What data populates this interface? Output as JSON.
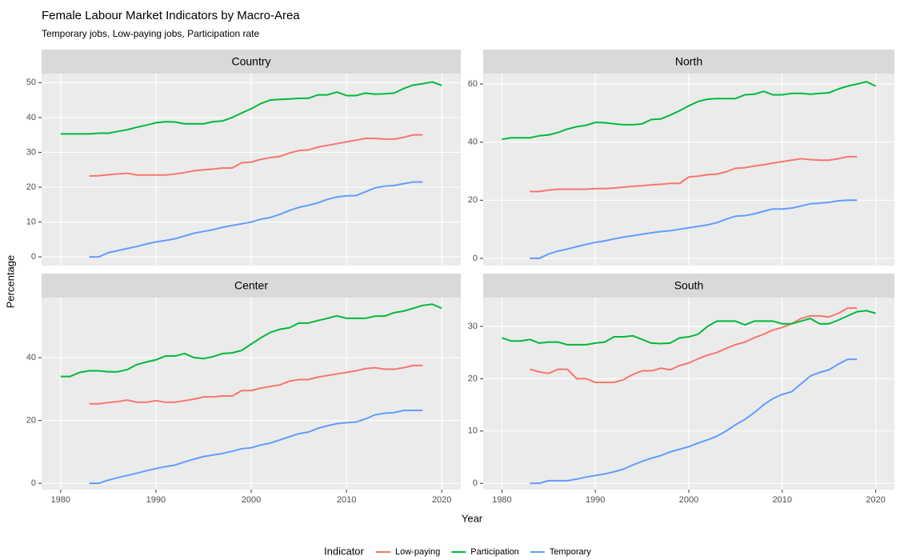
{
  "title": "Female Labour Market Indicators by Macro-Area",
  "subtitle": "Temporary jobs, Low-paying jobs, Participation rate",
  "x_label": "Year",
  "y_label": "Percentage",
  "legend_title": "Indicator",
  "chart_data": [
    {
      "type": "line",
      "title": "Country",
      "x": [
        1980,
        1981,
        1982,
        1983,
        1984,
        1985,
        1986,
        1987,
        1988,
        1989,
        1990,
        1991,
        1992,
        1993,
        1994,
        1995,
        1996,
        1997,
        1998,
        1999,
        2000,
        2001,
        2002,
        2003,
        2004,
        2005,
        2006,
        2007,
        2008,
        2009,
        2010,
        2011,
        2012,
        2013,
        2014,
        2015,
        2016,
        2017,
        2018,
        2019,
        2020
      ],
      "xlim": [
        1978,
        2022
      ],
      "xticks": [
        1980,
        1990,
        2000,
        2010,
        2020
      ],
      "ylim": [
        -2.5,
        52.6
      ],
      "yticks": [
        0,
        10,
        20,
        30,
        40,
        50
      ],
      "grid": true,
      "series": [
        {
          "name": "Low-paying",
          "color": "#F8766D",
          "values": [
            null,
            null,
            null,
            23.2,
            23.3,
            23.6,
            23.8,
            24,
            23.5,
            23.5,
            23.5,
            23.5,
            23.8,
            24.2,
            24.7,
            25,
            25.2,
            25.5,
            25.5,
            27,
            27.2,
            28,
            28.5,
            28.8,
            29.8,
            30.5,
            30.7,
            31.5,
            32,
            32.5,
            33,
            33.5,
            34,
            34,
            33.8,
            33.8,
            34.3,
            35,
            35,
            null,
            null
          ]
        },
        {
          "name": "Participation",
          "color": "#00BA38",
          "values": [
            35.3,
            35.3,
            35.3,
            35.3,
            35.5,
            35.5,
            36,
            36.5,
            37.2,
            37.8,
            38.5,
            38.8,
            38.7,
            38.2,
            38.2,
            38.2,
            38.8,
            39,
            40,
            41.3,
            42.5,
            44,
            45,
            45.2,
            45.3,
            45.5,
            45.5,
            46.5,
            46.5,
            47.3,
            46.3,
            46.3,
            47,
            46.7,
            46.8,
            47,
            48.3,
            49.3,
            49.7,
            50.2,
            49.2
          ]
        },
        {
          "name": "Temporary",
          "color": "#619CFF",
          "values": [
            null,
            null,
            null,
            0,
            0,
            1.2,
            1.8,
            2.4,
            3,
            3.7,
            4.3,
            4.7,
            5.2,
            6,
            6.8,
            7.3,
            7.8,
            8.5,
            9,
            9.5,
            10,
            10.8,
            11.3,
            12.2,
            13.3,
            14.2,
            14.8,
            15.5,
            16.5,
            17.2,
            17.5,
            17.6,
            18.7,
            19.8,
            20.3,
            20.5,
            21,
            21.5,
            21.5,
            null,
            null
          ]
        }
      ]
    },
    {
      "type": "line",
      "title": "North",
      "x": [
        1980,
        1981,
        1982,
        1983,
        1984,
        1985,
        1986,
        1987,
        1988,
        1989,
        1990,
        1991,
        1992,
        1993,
        1994,
        1995,
        1996,
        1997,
        1998,
        1999,
        2000,
        2001,
        2002,
        2003,
        2004,
        2005,
        2006,
        2007,
        2008,
        2009,
        2010,
        2011,
        2012,
        2013,
        2014,
        2015,
        2016,
        2017,
        2018,
        2019,
        2020
      ],
      "xlim": [
        1978,
        2022
      ],
      "xticks": [
        1980,
        1990,
        2000,
        2010,
        2020
      ],
      "ylim": [
        -2.5,
        63.6
      ],
      "yticks": [
        0,
        20,
        40,
        60
      ],
      "grid": true,
      "series": [
        {
          "name": "Low-paying",
          "color": "#F8766D",
          "values": [
            null,
            null,
            null,
            23,
            23,
            23.5,
            23.8,
            23.8,
            23.8,
            23.8,
            24,
            24,
            24.2,
            24.5,
            24.8,
            25,
            25.3,
            25.5,
            25.8,
            25.8,
            28,
            28.3,
            28.8,
            29,
            29.8,
            31,
            31.2,
            31.8,
            32.2,
            32.8,
            33.3,
            33.8,
            34.3,
            34,
            33.8,
            33.8,
            34.3,
            35,
            35,
            null,
            null
          ]
        },
        {
          "name": "Participation",
          "color": "#00BA38",
          "values": [
            41,
            41.5,
            41.5,
            41.5,
            42.2,
            42.5,
            43.3,
            44.5,
            45.3,
            45.8,
            46.8,
            46.7,
            46.3,
            46,
            46,
            46.3,
            47.8,
            48,
            49.3,
            50.8,
            52.5,
            54,
            54.8,
            55,
            55,
            55,
            56.3,
            56.5,
            57.5,
            56.3,
            56.3,
            56.8,
            56.8,
            56.5,
            56.8,
            57,
            58.3,
            59.3,
            60,
            60.8,
            59.3
          ]
        },
        {
          "name": "Temporary",
          "color": "#619CFF",
          "values": [
            null,
            null,
            null,
            0,
            0,
            1.5,
            2.5,
            3.2,
            4,
            4.8,
            5.5,
            6,
            6.7,
            7.3,
            7.8,
            8.3,
            8.8,
            9.2,
            9.5,
            10,
            10.5,
            11,
            11.5,
            12.3,
            13.5,
            14.5,
            14.7,
            15.3,
            16.2,
            17,
            17,
            17.3,
            18,
            18.8,
            19,
            19.3,
            19.8,
            20,
            20,
            null,
            null
          ]
        }
      ]
    },
    {
      "type": "line",
      "title": "Center",
      "x": [
        1980,
        1981,
        1982,
        1983,
        1984,
        1985,
        1986,
        1987,
        1988,
        1989,
        1990,
        1991,
        1992,
        1993,
        1994,
        1995,
        1996,
        1997,
        1998,
        1999,
        2000,
        2001,
        2002,
        2003,
        2004,
        2005,
        2006,
        2007,
        2008,
        2009,
        2010,
        2011,
        2012,
        2013,
        2014,
        2015,
        2016,
        2017,
        2018,
        2019,
        2020
      ],
      "xlim": [
        1978,
        2022
      ],
      "xticks": [
        1980,
        1990,
        2000,
        2010,
        2020
      ],
      "ylim": [
        -2,
        59.1
      ],
      "yticks": [
        0,
        20,
        40
      ],
      "grid": true,
      "series": [
        {
          "name": "Low-paying",
          "color": "#F8766D",
          "values": [
            null,
            null,
            null,
            25.3,
            25.3,
            25.7,
            26,
            26.5,
            25.8,
            25.8,
            26.3,
            25.8,
            25.8,
            26.3,
            26.8,
            27.5,
            27.5,
            27.8,
            27.8,
            29.5,
            29.5,
            30.3,
            30.8,
            31.3,
            32.5,
            33,
            33,
            33.8,
            34.3,
            34.8,
            35.3,
            35.8,
            36.5,
            36.8,
            36.3,
            36.3,
            36.8,
            37.5,
            37.5,
            null,
            null
          ]
        },
        {
          "name": "Participation",
          "color": "#00BA38",
          "values": [
            34,
            34,
            35.3,
            35.8,
            35.8,
            35.5,
            35.5,
            36.2,
            37.8,
            38.6,
            39.3,
            40.5,
            40.5,
            41.3,
            40,
            39.7,
            40.3,
            41.3,
            41.5,
            42.3,
            44.3,
            46.3,
            48,
            49,
            49.5,
            51,
            51,
            51.8,
            52.5,
            53.3,
            52.5,
            52.5,
            52.5,
            53.2,
            53.2,
            54.3,
            54.8,
            55.7,
            56.6,
            57,
            55.7
          ]
        },
        {
          "name": "Temporary",
          "color": "#619CFF",
          "values": [
            null,
            null,
            null,
            0,
            0,
            1,
            1.8,
            2.5,
            3.2,
            4,
            4.7,
            5.3,
            5.8,
            6.8,
            7.7,
            8.5,
            9,
            9.5,
            10.2,
            11,
            11.3,
            12.2,
            12.8,
            13.8,
            14.8,
            15.8,
            16.3,
            17.5,
            18.3,
            19,
            19.3,
            19.5,
            20.5,
            21.8,
            22.3,
            22.5,
            23.2,
            23.2,
            23.2,
            null,
            null
          ]
        }
      ]
    },
    {
      "type": "line",
      "title": "South",
      "x": [
        1980,
        1981,
        1982,
        1983,
        1984,
        1985,
        1986,
        1987,
        1988,
        1989,
        1990,
        1991,
        1992,
        1993,
        1994,
        1995,
        1996,
        1997,
        1998,
        1999,
        2000,
        2001,
        2002,
        2003,
        2004,
        2005,
        2006,
        2007,
        2008,
        2009,
        2010,
        2011,
        2012,
        2013,
        2014,
        2015,
        2016,
        2017,
        2018,
        2019,
        2020
      ],
      "xlim": [
        1978,
        2022
      ],
      "xticks": [
        1980,
        1990,
        2000,
        2010,
        2020
      ],
      "ylim": [
        -1.2,
        35.5
      ],
      "yticks": [
        0,
        10,
        20,
        30
      ],
      "grid": true,
      "series": [
        {
          "name": "Low-paying",
          "color": "#F8766D",
          "values": [
            null,
            null,
            null,
            21.8,
            21.3,
            21,
            21.8,
            21.8,
            20,
            20,
            19.3,
            19.3,
            19.3,
            19.8,
            20.8,
            21.5,
            21.5,
            22,
            21.7,
            22.5,
            23,
            23.8,
            24.5,
            25,
            25.8,
            26.5,
            27,
            27.8,
            28.5,
            29.3,
            29.8,
            30.5,
            31.5,
            32,
            32,
            31.8,
            32.5,
            33.5,
            33.5,
            null,
            null
          ]
        },
        {
          "name": "Participation",
          "color": "#00BA38",
          "values": [
            27.8,
            27.2,
            27.2,
            27.5,
            26.8,
            27,
            27,
            26.5,
            26.5,
            26.5,
            26.8,
            27,
            28,
            28,
            28.2,
            27.5,
            26.8,
            26.7,
            26.8,
            27.8,
            28,
            28.5,
            30,
            31,
            31,
            31,
            30.3,
            31,
            31,
            31,
            30.5,
            30.5,
            31,
            31.5,
            30.5,
            30.5,
            31.2,
            32,
            32.8,
            33,
            32.5
          ]
        },
        {
          "name": "Temporary",
          "color": "#619CFF",
          "values": [
            null,
            null,
            null,
            0,
            0,
            0.5,
            0.5,
            0.5,
            0.8,
            1.2,
            1.5,
            1.8,
            2.2,
            2.7,
            3.5,
            4.2,
            4.8,
            5.3,
            6,
            6.5,
            7,
            7.7,
            8.3,
            9,
            10,
            11.2,
            12.2,
            13.5,
            15,
            16.2,
            17,
            17.5,
            19,
            20.5,
            21.2,
            21.7,
            22.8,
            23.7,
            23.7,
            null,
            null
          ]
        }
      ]
    }
  ]
}
